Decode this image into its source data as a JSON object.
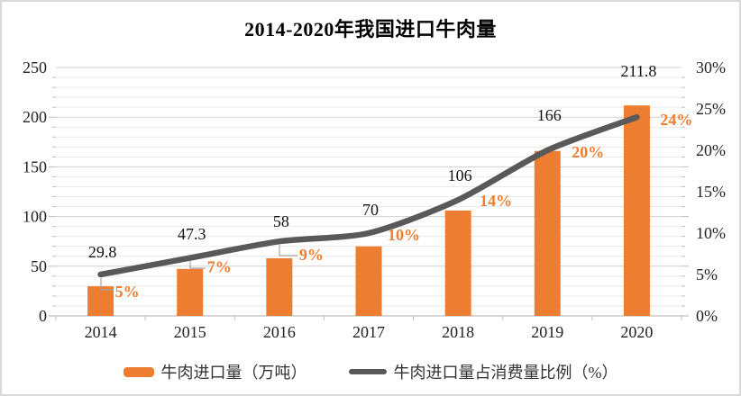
{
  "chart_data": {
    "type": "combo-bar-line",
    "title": "2014-2020年我国进口牛肉量",
    "categories": [
      "2014",
      "2015",
      "2016",
      "2017",
      "2018",
      "2019",
      "2020"
    ],
    "series": [
      {
        "name": "牛肉进口量（万吨）",
        "type": "bar",
        "axis": "left",
        "color": "#ED7D31",
        "values": [
          29.8,
          47.3,
          58,
          70,
          106,
          166,
          211.8
        ],
        "point_labels": [
          "29.8",
          "47.3",
          "58",
          "70",
          "106",
          "166",
          "211.8"
        ],
        "label_color": "#111111"
      },
      {
        "name": "牛肉进口量占消费量比例（%）",
        "type": "line",
        "axis": "right",
        "color": "#595959",
        "values": [
          5,
          7,
          9,
          10,
          14,
          20,
          24
        ],
        "point_labels": [
          "5%",
          "7%",
          "9%",
          "10%",
          "14%",
          "20%",
          "24%"
        ],
        "label_color": "#ED7D31"
      }
    ],
    "left_axis": {
      "min": 0,
      "max": 250,
      "major_step": 50,
      "minor_step": 10,
      "tick_labels": [
        "0",
        "50",
        "100",
        "150",
        "200",
        "250"
      ]
    },
    "right_axis": {
      "min": 0,
      "max": 30,
      "major_step": 5,
      "tick_labels": [
        "0%",
        "5%",
        "10%",
        "15%",
        "20%",
        "25%",
        "30%"
      ]
    },
    "legend_position": "bottom",
    "grid": {
      "major": true,
      "minor": true
    },
    "palette": {
      "major_grid": "#D0D0D0",
      "minor_grid": "#E9E9E9",
      "axis_line": "#BFBFBF",
      "leader": "#A6A6A6",
      "axis_text": "#222222",
      "frame_border": "#D9D9D9"
    }
  }
}
